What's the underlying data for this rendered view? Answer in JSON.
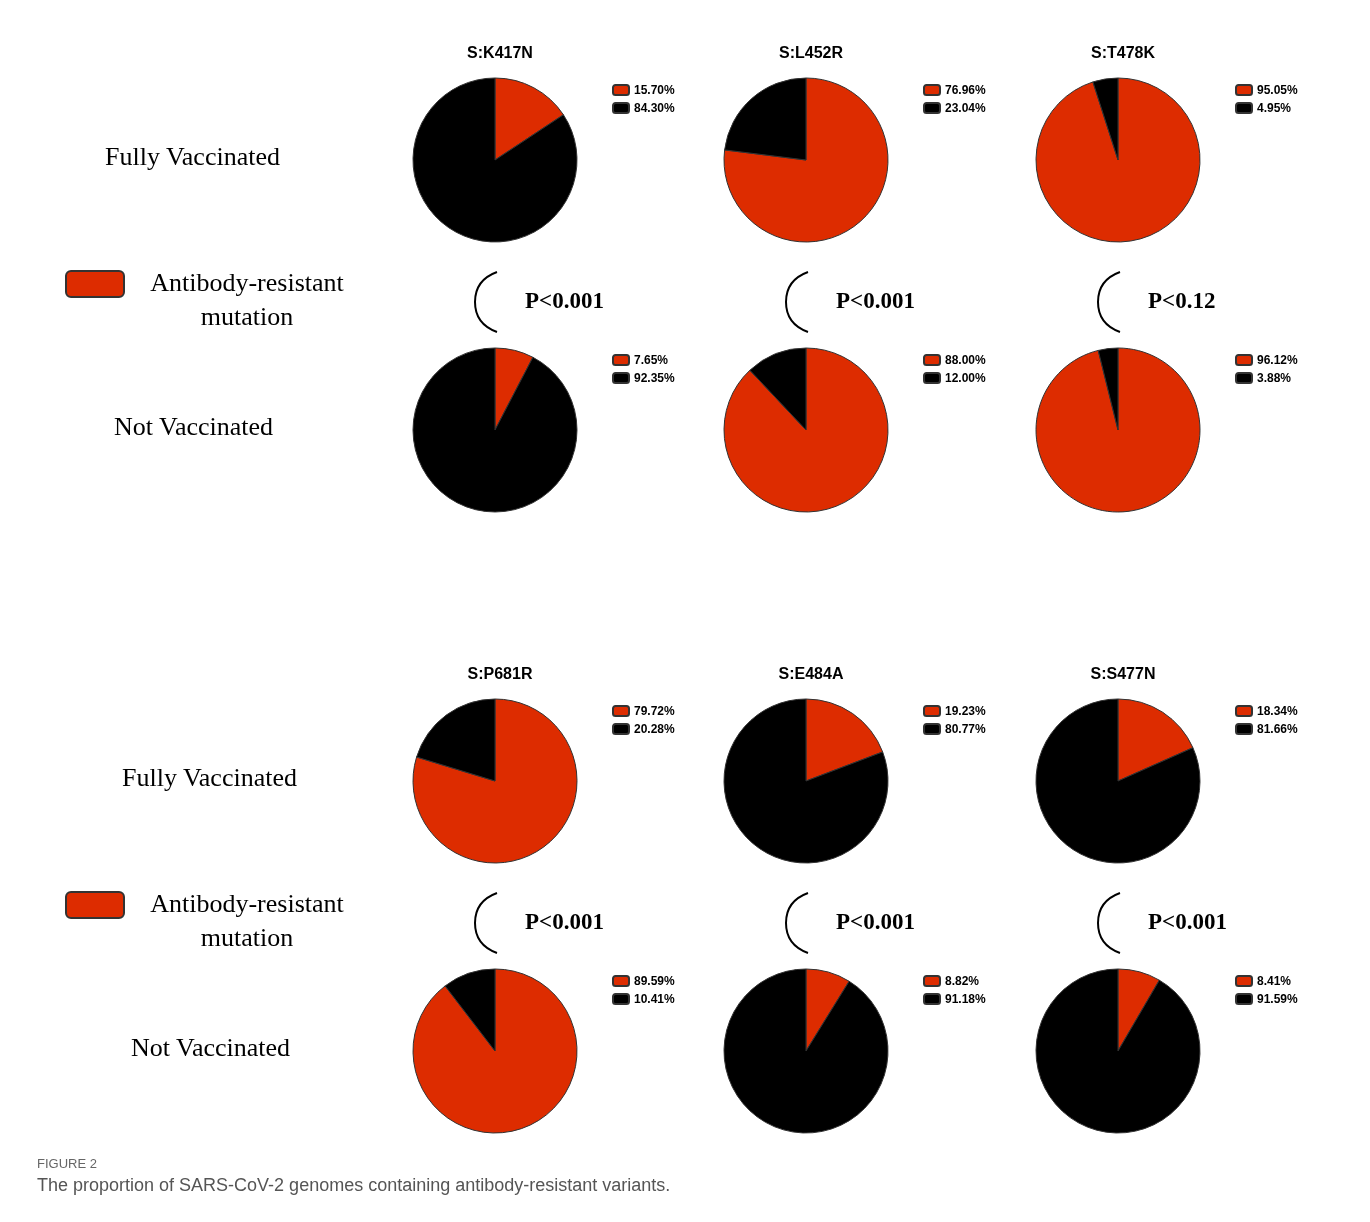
{
  "chart_data": [
    {
      "type": "pie",
      "title": "S:K417N",
      "categories": [
        "15.70%",
        "84.30%"
      ],
      "values": [
        15.7,
        84.3
      ],
      "colors": [
        "#dd2c00",
        "#000000"
      ],
      "legend": "top right",
      "annotations": [
        "Fully Vaccinated",
        "Antibody-resistant mutation"
      ]
    },
    {
      "type": "pie",
      "title": "S:L452R",
      "categories": [
        "76.96%",
        "23.04%"
      ],
      "values": [
        76.96,
        23.04
      ],
      "colors": [
        "#dd2c00",
        "#000000"
      ],
      "legend": "top right"
    },
    {
      "type": "pie",
      "title": "S:T478K",
      "categories": [
        "95.05%",
        "4.95%"
      ],
      "values": [
        95.05,
        4.95
      ],
      "colors": [
        "#dd2c00",
        "#000000"
      ],
      "legend": "top right"
    },
    {
      "type": "pie",
      "categories": [
        "7.65%",
        "92.35%"
      ],
      "values": [
        7.65,
        92.35
      ],
      "colors": [
        "#dd2c00",
        "#000000"
      ],
      "legend": "top right",
      "annotations": [
        "Not Vaccinated",
        "P<0.001"
      ]
    },
    {
      "type": "pie",
      "categories": [
        "88.00%",
        "12.00%"
      ],
      "values": [
        88.0,
        12.0
      ],
      "colors": [
        "#dd2c00",
        "#000000"
      ],
      "legend": "top right",
      "annotations": [
        "P<0.001"
      ]
    },
    {
      "type": "pie",
      "categories": [
        "96.12%",
        "3.88%"
      ],
      "values": [
        96.12,
        3.88
      ],
      "colors": [
        "#dd2c00",
        "#000000"
      ],
      "legend": "top right",
      "annotations": [
        "P<0.12"
      ]
    },
    {
      "type": "pie",
      "title": "S:P681R",
      "categories": [
        "79.72%",
        "20.28%"
      ],
      "values": [
        79.72,
        20.28
      ],
      "colors": [
        "#dd2c00",
        "#000000"
      ],
      "legend": "top right",
      "annotations": [
        "Fully Vaccinated",
        "Antibody-resistant mutation"
      ]
    },
    {
      "type": "pie",
      "title": "S:E484A",
      "categories": [
        "19.23%",
        "80.77%"
      ],
      "values": [
        19.23,
        80.77
      ],
      "colors": [
        "#dd2c00",
        "#000000"
      ],
      "legend": "top right"
    },
    {
      "type": "pie",
      "title": "S:S477N",
      "categories": [
        "18.34%",
        "81.66%"
      ],
      "values": [
        18.34,
        81.66
      ],
      "colors": [
        "#dd2c00",
        "#000000"
      ],
      "legend": "top right"
    },
    {
      "type": "pie",
      "categories": [
        "89.59%",
        "10.41%"
      ],
      "values": [
        89.59,
        10.41
      ],
      "colors": [
        "#dd2c00",
        "#000000"
      ],
      "legend": "top right",
      "annotations": [
        "Not Vaccinated",
        "P<0.001",
        "FIGURE 2",
        "The proportion of SARS-CoV-2 genomes containing antibody-resistant variants."
      ]
    },
    {
      "type": "pie",
      "categories": [
        "8.82%",
        "91.18%"
      ],
      "values": [
        8.82,
        91.18
      ],
      "colors": [
        "#dd2c00",
        "#000000"
      ],
      "legend": "top right",
      "annotations": [
        "P<0.001"
      ]
    },
    {
      "type": "pie",
      "categories": [
        "8.41%",
        "91.59%"
      ],
      "values": [
        8.41,
        91.59
      ],
      "colors": [
        "#dd2c00",
        "#000000"
      ],
      "legend": "top right",
      "annotations": [
        "P<0.001"
      ]
    }
  ]
}
